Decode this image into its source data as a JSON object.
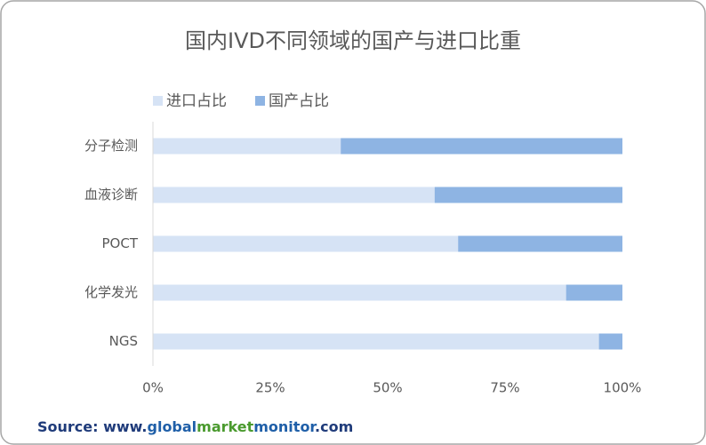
{
  "chart_data": {
    "type": "stacked_bar_horizontal",
    "title": "国内IVD不同领域的国产与进口比重",
    "categories": [
      "分子检测",
      "血液诊断",
      "POCT",
      "化学发光",
      "NGS"
    ],
    "series": [
      {
        "name": "进口占比",
        "color": "#d6e3f5",
        "values": [
          40,
          60,
          65,
          88,
          95
        ]
      },
      {
        "name": "国产占比",
        "color": "#8eb4e3",
        "values": [
          60,
          40,
          35,
          12,
          5
        ]
      }
    ],
    "xlim": [
      0,
      100
    ],
    "xticks": [
      {
        "value": 0,
        "label": "0%"
      },
      {
        "value": 25,
        "label": "25%"
      },
      {
        "value": 50,
        "label": "50%"
      },
      {
        "value": 75,
        "label": "75%"
      },
      {
        "value": 100,
        "label": "100%"
      }
    ],
    "source": [
      {
        "text": "Source: www.",
        "color": "#1f3b7a"
      },
      {
        "text": "global",
        "color": "#1f5fa8"
      },
      {
        "text": "market",
        "color": "#4a9a2e"
      },
      {
        "text": "monitor",
        "color": "#1f5fa8"
      },
      {
        "text": ".com",
        "color": "#1f3b7a"
      }
    ]
  }
}
